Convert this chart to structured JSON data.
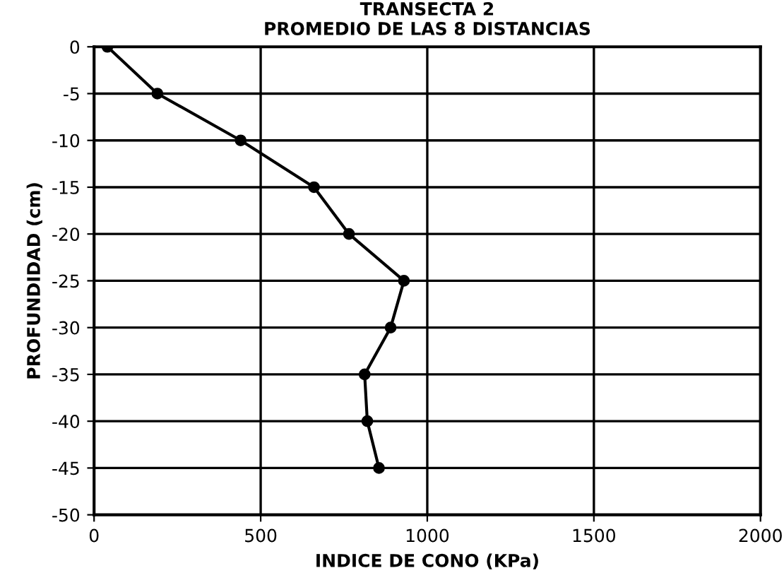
{
  "chart_data": {
    "type": "line",
    "title": "TRANSECTA 2\nPROMEDIO DE LAS 8 DISTANCIAS",
    "xlabel": "INDICE DE CONO (KPa)",
    "ylabel": "PROFUNDIDAD (cm)",
    "series": [
      {
        "color": "#000000",
        "x": [
          40,
          190,
          440,
          660,
          765,
          930,
          890,
          812,
          820,
          855
        ],
        "values": [
          0,
          -5,
          -10,
          -15,
          -20,
          -25,
          -30,
          -35,
          -40,
          -45
        ]
      }
    ],
    "xlim": [
      0,
      2000
    ],
    "xticks": [
      0,
      500,
      1000,
      1500,
      2000
    ],
    "ylim": [
      -50,
      0
    ],
    "yticks": [
      0,
      -5,
      -10,
      -15,
      -20,
      -25,
      -30,
      -35,
      -40,
      -45,
      -50
    ],
    "grid": true,
    "marker": "circle",
    "line_style": "solid"
  }
}
